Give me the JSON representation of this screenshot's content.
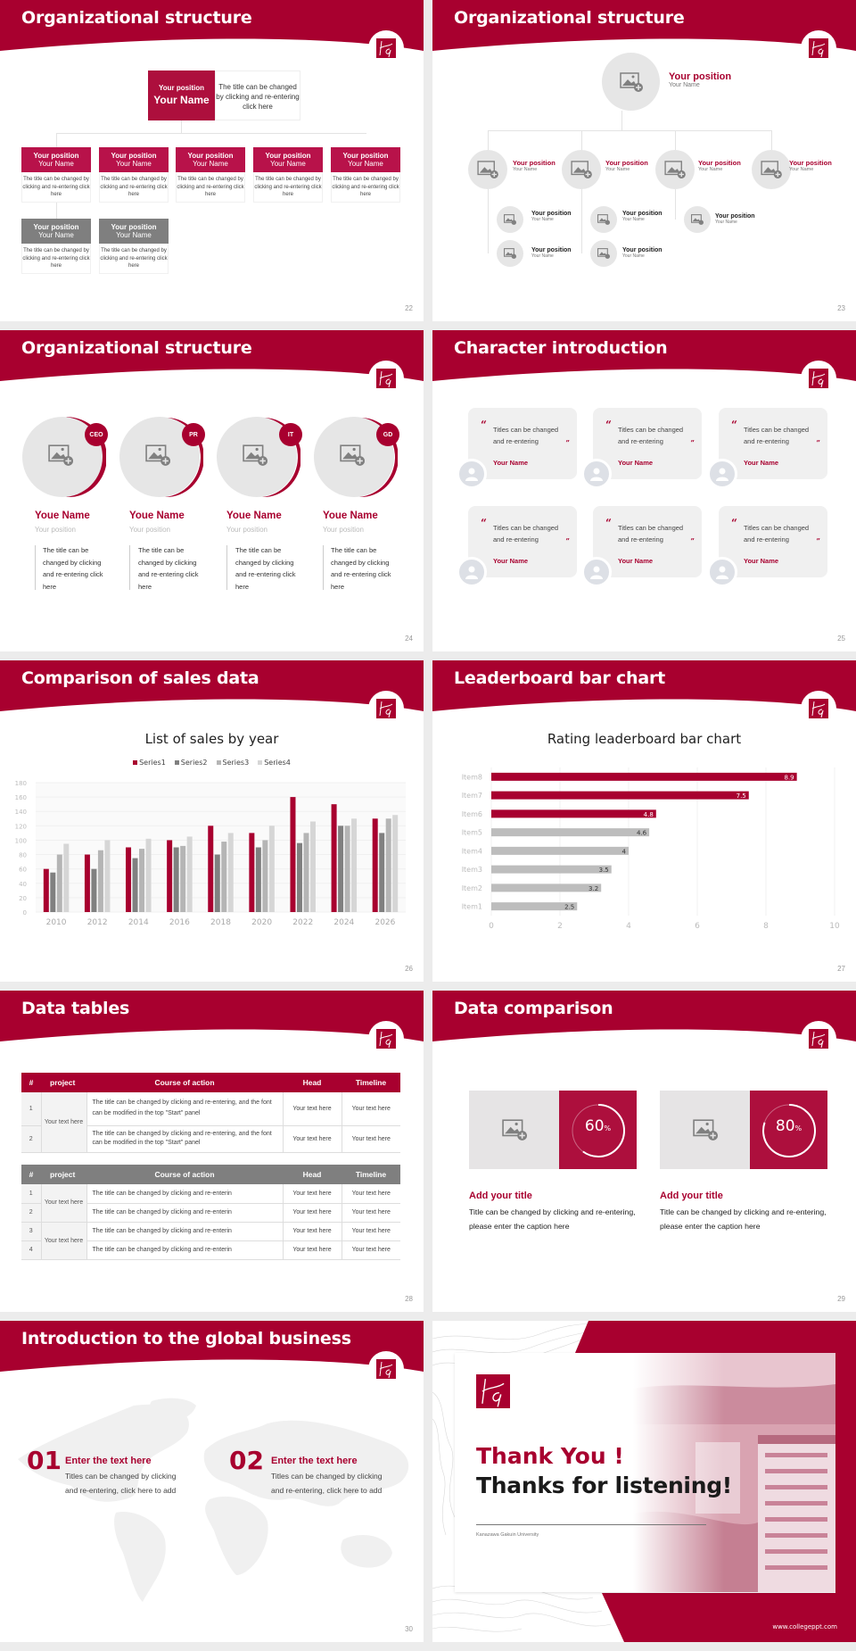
{
  "theme": {
    "accent": "#a8002f",
    "accent_light": "#b8124a",
    "gray_dark": "#808080",
    "gray_mid": "#b5b5b5",
    "gray_light": "#d6d6d6",
    "placeholder": "#e6e6e6"
  },
  "logo": {
    "letters": "KG"
  },
  "slides": [
    {
      "id": "s22",
      "title": "Organizational structure",
      "page": "22",
      "top": {
        "position": "Your position",
        "name": "Your Name",
        "desc": "The title can be changed by clicking and re-entering click here"
      },
      "row1": [
        {
          "position": "Your position",
          "name": "Your Name",
          "desc": "The title can be changed by clicking and re-entering click here"
        },
        {
          "position": "Your position",
          "name": "Your Name",
          "desc": "The title can be changed by clicking and re-entering click here"
        },
        {
          "position": "Your position",
          "name": "Your Name",
          "desc": "The title can be changed by clicking and re-entering click here"
        },
        {
          "position": "Your position",
          "name": "Your Name",
          "desc": "The title can be changed by clicking and re-entering click here"
        },
        {
          "position": "Your position",
          "name": "Your Name",
          "desc": "The title can be changed by clicking and re-entering click here"
        }
      ],
      "row2": [
        {
          "position": "Your position",
          "name": "Your Name",
          "desc": "The title can be changed by clicking and re-entering click here"
        },
        {
          "position": "Your position",
          "name": "Your Name",
          "desc": "The title can be changed by clicking and re-entering click here"
        }
      ]
    },
    {
      "id": "s23",
      "title": "Organizational structure",
      "page": "23",
      "top": {
        "position": "Your position",
        "name": "Your Name"
      },
      "level2": [
        {
          "position": "Your position",
          "name": "Your Name"
        },
        {
          "position": "Your position",
          "name": "Your Name"
        },
        {
          "position": "Your position",
          "name": "Your Name"
        },
        {
          "position": "Your position",
          "name": "Your Name"
        }
      ],
      "level3": [
        {
          "position": "Your position",
          "name": "Your Name"
        },
        {
          "position": "Your position",
          "name": "Your Name"
        },
        {
          "position": "Your position",
          "name": "Your Name"
        },
        {
          "position": "Your position",
          "name": "Your Name"
        },
        {
          "position": "Your position",
          "name": "Your Name"
        }
      ]
    },
    {
      "id": "s24",
      "title": "Organizational structure",
      "page": "24",
      "people": [
        {
          "badge": "CEO",
          "name": "Youe Name",
          "position": "Your position",
          "desc": "The title can be changed by clicking and re-entering click here"
        },
        {
          "badge": "PR",
          "name": "Youe Name",
          "position": "Your position",
          "desc": "The title can be changed by clicking and re-entering click here"
        },
        {
          "badge": "IT",
          "name": "Youe Name",
          "position": "Your position",
          "desc": "The title can be changed by clicking and re-entering click here"
        },
        {
          "badge": "GD",
          "name": "Youe Name",
          "position": "Your position",
          "desc": "The title can be changed by clicking and re-entering click here"
        }
      ]
    },
    {
      "id": "s25",
      "title": "Character introduction",
      "page": "25",
      "quotes": [
        {
          "open": "“",
          "text": "Titles can be changed and re-entering",
          "close": "”",
          "name": "Your Name"
        },
        {
          "open": "“",
          "text": "Titles can be changed and re-entering",
          "close": "”",
          "name": "Your Name"
        },
        {
          "open": "“",
          "text": "Titles can be changed and re-entering",
          "close": "”",
          "name": "Your Name"
        },
        {
          "open": "“",
          "text": "Titles can be changed and re-entering",
          "close": "”",
          "name": "Your Name"
        },
        {
          "open": "“",
          "text": "Titles can be changed and re-entering",
          "close": "”",
          "name": "Your Name"
        },
        {
          "open": "“",
          "text": "Titles can be changed and re-entering",
          "close": "”",
          "name": "Your Name"
        }
      ]
    },
    {
      "id": "s26",
      "title": "Comparison of sales data",
      "page": "26"
    },
    {
      "id": "s27",
      "title": "Leaderboard bar chart",
      "page": "27"
    },
    {
      "id": "s28",
      "title": "Data tables",
      "page": "28",
      "table1": {
        "headers": [
          "#",
          "project",
          "Course of action",
          "Head",
          "Timeline"
        ],
        "project": "Your text here",
        "rows": [
          {
            "num": "1",
            "action": "The title can be changed by clicking and re-entering, and the font can be modified in the top \"Start\" panel",
            "head": "Your text here",
            "timeline": "Your text here"
          },
          {
            "num": "2",
            "action": "The title can be changed by clicking and re-entering, and the font can be modified in the top \"Start\" panel",
            "head": "Your text here",
            "timeline": "Your text here"
          }
        ]
      },
      "table2": {
        "headers": [
          "#",
          "project",
          "Course of action",
          "Head",
          "Timeline"
        ],
        "projects": [
          "Your text here",
          "Your text here"
        ],
        "rows": [
          {
            "num": "1",
            "action": "The title can be changed by clicking and re-enterin",
            "head": "Your text here",
            "timeline": "Your text here"
          },
          {
            "num": "2",
            "action": "The title can be changed by clicking and re-enterin",
            "head": "Your text here",
            "timeline": "Your text here"
          },
          {
            "num": "3",
            "action": "The title can be changed by clicking and re-enterin",
            "head": "Your text here",
            "timeline": "Your text here"
          },
          {
            "num": "4",
            "action": "The title can be changed by clicking and re-enterin",
            "head": "Your text here",
            "timeline": "Your text here"
          }
        ]
      }
    },
    {
      "id": "s29",
      "title": "Data comparison",
      "page": "29",
      "items": [
        {
          "value": "60",
          "unit": "%",
          "title": "Add your title",
          "desc": "Title can be changed by clicking and re-entering, please enter the caption here"
        },
        {
          "value": "80",
          "unit": "%",
          "title": "Add your title",
          "desc": "Title can be changed by clicking and re-entering, please enter the caption here"
        }
      ]
    },
    {
      "id": "s30",
      "title": "Introduction to the global business",
      "page": "30",
      "items": [
        {
          "num": "01",
          "title": "Enter the text here",
          "desc": "Titles can be changed by clicking and re-entering, click here to add"
        },
        {
          "num": "02",
          "title": "Enter the text here",
          "desc": "Titles can be changed by clicking and re-entering, click here to add"
        }
      ]
    },
    {
      "id": "s31",
      "title1": "Thank You !",
      "title2": "Thanks for listening!",
      "university": "Kanazawa Gakuin University",
      "website": "www.collegeppt.com"
    }
  ],
  "chart_data": [
    {
      "type": "bar",
      "title": "List of sales by year",
      "categories": [
        "2010",
        "2012",
        "2014",
        "2016",
        "2018",
        "2020",
        "2022",
        "2024",
        "2026"
      ],
      "series": [
        {
          "name": "Series1",
          "color": "#a8002f",
          "values": [
            60,
            80,
            90,
            100,
            120,
            110,
            160,
            150,
            130
          ]
        },
        {
          "name": "Series2",
          "color": "#808080",
          "values": [
            55,
            60,
            75,
            90,
            80,
            90,
            96,
            120,
            110
          ]
        },
        {
          "name": "Series3",
          "color": "#b5b5b5",
          "values": [
            80,
            86,
            88,
            92,
            98,
            100,
            110,
            120,
            130
          ]
        },
        {
          "name": "Series4",
          "color": "#d6d6d6",
          "values": [
            95,
            100,
            102,
            105,
            110,
            120,
            126,
            130,
            135
          ]
        }
      ],
      "yticks": [
        "0",
        "20",
        "40",
        "60",
        "80",
        "100",
        "120",
        "140",
        "160",
        "180"
      ],
      "ylim": [
        0,
        180
      ],
      "legend": "top",
      "grid": true,
      "xlabel": "",
      "ylabel": ""
    },
    {
      "type": "bar",
      "orientation": "horizontal",
      "title": "Rating leaderboard bar chart",
      "categories": [
        "Item8",
        "Item7",
        "Item6",
        "Item5",
        "Item4",
        "Item3",
        "Item2",
        "Item1"
      ],
      "values": [
        8.9,
        7.5,
        4.8,
        4.6,
        4,
        3.5,
        3.2,
        2.5
      ],
      "labels": [
        "8.9",
        "7.5",
        "4.8",
        "4.6",
        "4",
        "3.5",
        "3.2",
        "2.5"
      ],
      "colors": [
        "#a8002f",
        "#a8002f",
        "#a8002f",
        "#bdbdbd",
        "#bdbdbd",
        "#bdbdbd",
        "#bdbdbd",
        "#bdbdbd"
      ],
      "xticks": [
        "0",
        "2",
        "4",
        "6",
        "8",
        "10"
      ],
      "xlim": [
        0,
        10
      ],
      "grid": true,
      "xlabel": "",
      "ylabel": ""
    }
  ]
}
